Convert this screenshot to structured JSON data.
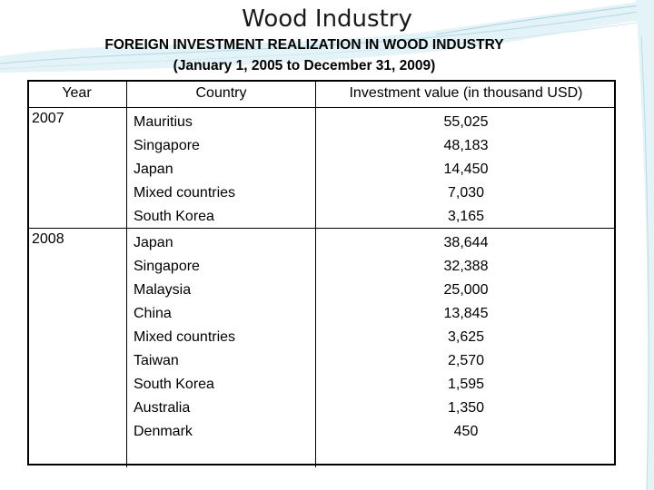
{
  "slide": {
    "title": "Wood Industry",
    "subtitle_line1": "FOREIGN INVESTMENT REALIZATION IN WOOD INDUSTRY",
    "subtitle_line2": "(January 1, 2005 to December 31, 2009)"
  },
  "table": {
    "headers": {
      "year": "Year",
      "country": "Country",
      "value": "Investment value (in thousand USD)"
    },
    "groups": [
      {
        "year": "2007",
        "rows": [
          {
            "country": "Mauritius",
            "value": "55,025"
          },
          {
            "country": "Singapore",
            "value": "48,183"
          },
          {
            "country": "Japan",
            "value": "14,450"
          },
          {
            "country": "Mixed countries",
            "value": "7,030"
          },
          {
            "country": "South Korea",
            "value": "3,165"
          }
        ]
      },
      {
        "year": "2008",
        "rows": [
          {
            "country": "Japan",
            "value": "38,644"
          },
          {
            "country": "Singapore",
            "value": "32,388"
          },
          {
            "country": "Malaysia",
            "value": "25,000"
          },
          {
            "country": "China",
            "value": "13,845"
          },
          {
            "country": "Mixed countries",
            "value": "3,625"
          },
          {
            "country": "Taiwan",
            "value": "2,570"
          },
          {
            "country": "South Korea",
            "value": "1,595"
          },
          {
            "country": "Australia",
            "value": "1,350"
          },
          {
            "country": "Denmark",
            "value": "450"
          }
        ]
      }
    ]
  },
  "colors": {
    "background": "#ffffff",
    "swoosh_light": "#d9eef3",
    "swoosh_mid": "#a9d3de"
  }
}
